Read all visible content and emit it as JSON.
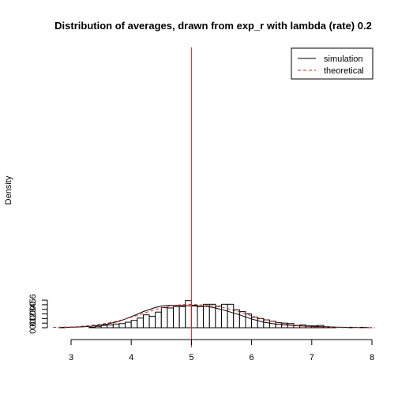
{
  "chart_data": {
    "type": "bar",
    "title": "Distribution of averages, drawn from exp_r with lambda (rate) 0.2",
    "xlabel": "",
    "ylabel": "Density",
    "xlim": [
      2.7,
      8.05
    ],
    "ylim": [
      0,
      0.6
    ],
    "x_ticks": [
      "3",
      "4",
      "5",
      "6",
      "7",
      "8"
    ],
    "y_ticks": [
      "0.0",
      "0.1",
      "0.2",
      "0.3",
      "0.4",
      "0.5",
      "0.6"
    ],
    "bin_width": 0.1,
    "bin_start": 2.8,
    "histogram_densities": [
      0.01,
      0.0,
      0.0,
      0.0,
      0.0,
      0.01,
      0.03,
      0.05,
      0.06,
      0.08,
      0.09,
      0.12,
      0.16,
      0.21,
      0.28,
      0.25,
      0.34,
      0.44,
      0.43,
      0.46,
      0.46,
      0.59,
      0.49,
      0.46,
      0.51,
      0.51,
      0.47,
      0.51,
      0.51,
      0.39,
      0.35,
      0.3,
      0.23,
      0.2,
      0.17,
      0.14,
      0.11,
      0.1,
      0.09,
      0.05,
      0.06,
      0.04,
      0.04,
      0.05,
      0.02,
      0.01,
      0.0,
      0.0,
      0.01,
      0.0,
      0.01
    ],
    "vertical_line_x": 5,
    "series": [
      {
        "name": "simulation",
        "color": "#000000",
        "style": "solid",
        "x": [
          2.8,
          3.0,
          3.2,
          3.4,
          3.6,
          3.8,
          4.0,
          4.2,
          4.4,
          4.5,
          4.6,
          4.7,
          4.8,
          4.9,
          5.0,
          5.1,
          5.2,
          5.3,
          5.4,
          5.6,
          5.8,
          6.0,
          6.2,
          6.4,
          6.6,
          6.8,
          7.0,
          7.2,
          7.4,
          7.6,
          7.8,
          8.0
        ],
        "y": [
          0.005,
          0.01,
          0.02,
          0.04,
          0.08,
          0.14,
          0.24,
          0.35,
          0.44,
          0.47,
          0.485,
          0.49,
          0.485,
          0.48,
          0.475,
          0.47,
          0.465,
          0.455,
          0.43,
          0.36,
          0.28,
          0.19,
          0.12,
          0.08,
          0.055,
          0.04,
          0.03,
          0.02,
          0.012,
          0.008,
          0.005,
          0.003
        ]
      },
      {
        "name": "theoretical",
        "color": "#d62728",
        "style": "dashed",
        "x": [
          2.7,
          2.9,
          3.1,
          3.3,
          3.5,
          3.7,
          3.9,
          4.1,
          4.3,
          4.5,
          4.7,
          4.9,
          5.0,
          5.1,
          5.3,
          5.5,
          5.7,
          5.9,
          6.1,
          6.3,
          6.5,
          6.7,
          6.9,
          7.1,
          7.3,
          7.5,
          7.7,
          7.9,
          8.05
        ],
        "y": [
          0.007,
          0.013,
          0.024,
          0.045,
          0.076,
          0.123,
          0.187,
          0.267,
          0.355,
          0.43,
          0.485,
          0.507,
          0.505,
          0.5,
          0.485,
          0.45,
          0.38,
          0.3,
          0.22,
          0.15,
          0.094,
          0.053,
          0.028,
          0.013,
          0.006,
          0.003,
          0.001,
          0.0004,
          0.0002
        ]
      }
    ],
    "legend": {
      "placement": "top-right"
    },
    "grid": false
  }
}
